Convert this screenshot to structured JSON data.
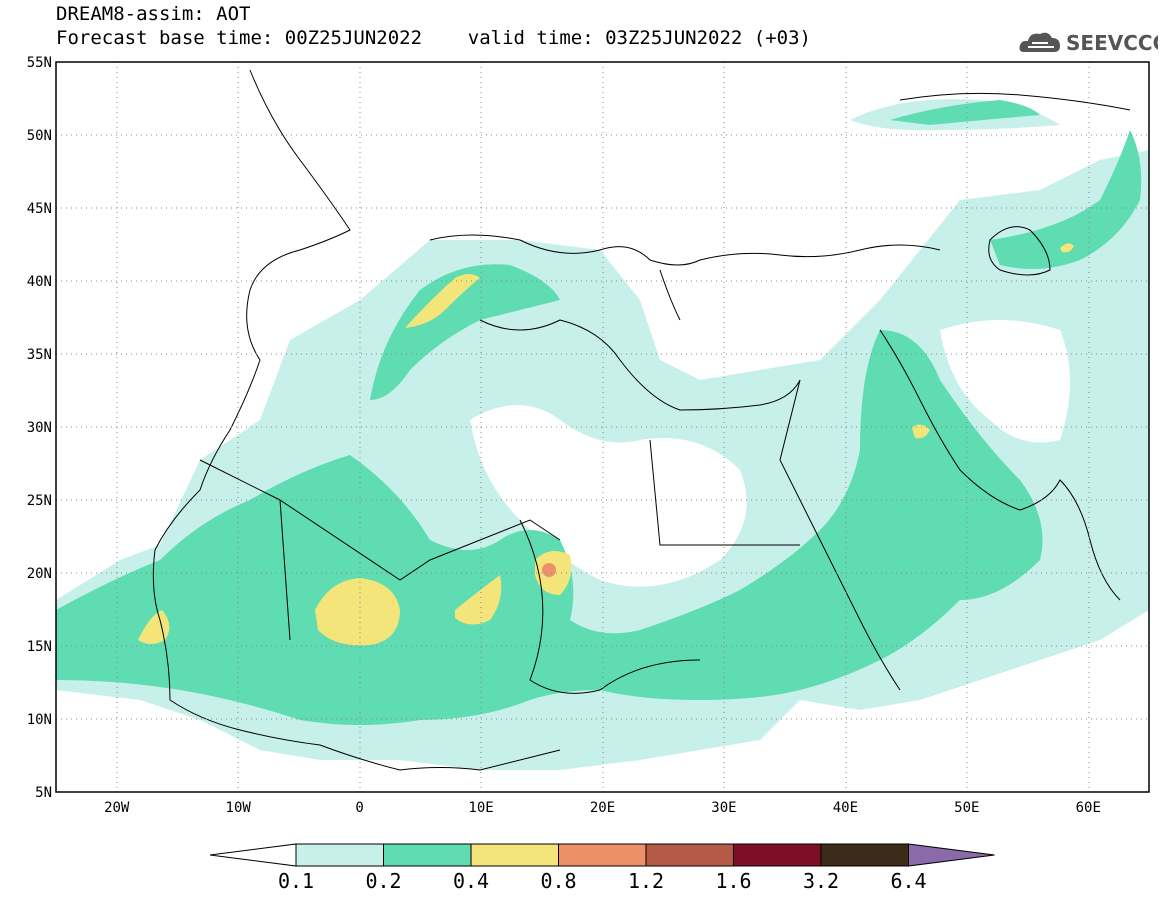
{
  "header": {
    "title_line1": "DREAM8-assim: AOT",
    "title_line2": "Forecast base time: 00Z25JUN2022    valid time: 03Z25JUN2022 (+03)",
    "logo_text": "SEEVCCC",
    "logo_icon": "cloud-icon"
  },
  "map": {
    "lat_labels": [
      "55N",
      "50N",
      "45N",
      "40N",
      "35N",
      "30N",
      "25N",
      "20N",
      "15N",
      "10N",
      "5N"
    ],
    "lon_labels": [
      "20W",
      "10W",
      "0",
      "10E",
      "20E",
      "30E",
      "40E",
      "50E",
      "60E"
    ],
    "lat_range": [
      5,
      55
    ],
    "lon_range": [
      -25,
      65
    ],
    "grid": "dotted"
  },
  "colorbar": {
    "levels": [
      "0.1",
      "0.2",
      "0.4",
      "0.8",
      "1.2",
      "1.6",
      "3.2",
      "6.4"
    ],
    "colors": [
      "#ffffff",
      "#c8f0ea",
      "#5fdcb1",
      "#f3e57a",
      "#eb9068",
      "#b65a48",
      "#7c0e26",
      "#3d2b19",
      "#8a6aa8"
    ]
  }
}
